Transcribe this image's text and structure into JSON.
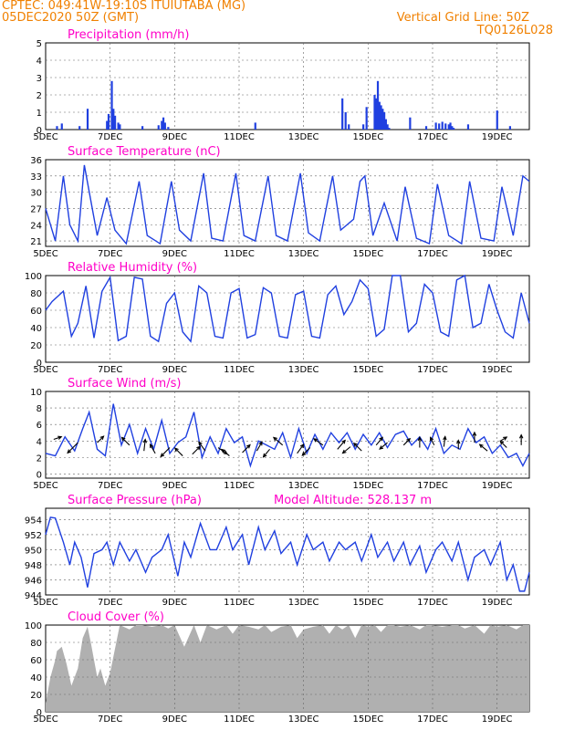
{
  "header": {
    "line1_left": "CPTEC:   049:41W-19:10S   ITUIUTABA (MG)",
    "line2_left": "05DEC2020 50Z (GMT)",
    "line1_right": "Vertical Grid Line: 50Z",
    "line2_right": "TQ0126L028"
  },
  "colors": {
    "header": "#f08000",
    "title": "#ff00c8",
    "series": "#2040e0",
    "cloud": "#b0b0b0",
    "wind_arrow": "#000000"
  },
  "x_dates": [
    "5DEC",
    "7DEC",
    "9DEC",
    "11DEC",
    "13DEC",
    "15DEC",
    "17DEC",
    "19DEC"
  ],
  "chart_data": [
    {
      "id": "precipitation",
      "type": "bar",
      "title": "Precipitation (mm/h)",
      "xlim": [
        0,
        15
      ],
      "ylim": [
        0,
        5
      ],
      "yticks": [
        "0",
        "1",
        "2",
        "3",
        "4",
        "5"
      ],
      "grid": true,
      "x": [
        0.35,
        0.5,
        1.05,
        1.3,
        1.9,
        1.95,
        2.05,
        2.1,
        2.15,
        2.25,
        2.3,
        3.0,
        3.5,
        3.6,
        3.65,
        3.7,
        3.8,
        6.5,
        9.2,
        9.3,
        9.4,
        9.85,
        9.95,
        10.2,
        10.25,
        10.3,
        10.35,
        10.4,
        10.45,
        10.5,
        10.55,
        10.6,
        10.65,
        11.3,
        11.8,
        12.1,
        12.2,
        12.3,
        12.4,
        12.5,
        12.55,
        12.6,
        12.65,
        13.1,
        14.0,
        14.4
      ],
      "values": [
        0.2,
        0.35,
        0.2,
        1.2,
        0.5,
        0.9,
        2.8,
        1.2,
        0.8,
        0.4,
        0.3,
        0.2,
        0.25,
        0.5,
        0.7,
        0.4,
        0.15,
        0.4,
        1.8,
        1.0,
        0.3,
        0.3,
        1.3,
        2.0,
        1.8,
        2.8,
        1.6,
        1.4,
        1.2,
        1.0,
        0.6,
        0.3,
        0.1,
        0.7,
        0.2,
        0.4,
        0.35,
        0.45,
        0.35,
        0.3,
        0.4,
        0.2,
        0.1,
        0.3,
        1.1,
        0.2
      ]
    },
    {
      "id": "temperature",
      "type": "line",
      "title": "Surface Temperature (nC)",
      "xlim": [
        0,
        15
      ],
      "ylim": [
        20,
        36
      ],
      "yticks": [
        "21",
        "24",
        "27",
        "30",
        "33",
        "36"
      ],
      "grid": true,
      "x": [
        0,
        0.3,
        0.55,
        0.75,
        1.0,
        1.2,
        1.6,
        1.9,
        2.15,
        2.5,
        2.9,
        3.15,
        3.55,
        3.9,
        4.15,
        4.5,
        4.9,
        5.15,
        5.5,
        5.9,
        6.15,
        6.5,
        6.9,
        7.15,
        7.5,
        7.9,
        8.15,
        8.5,
        8.9,
        9.15,
        9.55,
        9.75,
        9.9,
        10.15,
        10.5,
        10.9,
        11.15,
        11.5,
        11.9,
        12.15,
        12.5,
        12.9,
        13.15,
        13.5,
        13.9,
        14.15,
        14.5,
        14.8,
        15.0
      ],
      "values": [
        27,
        21,
        33,
        24,
        21,
        35,
        22,
        29,
        23,
        20.5,
        32,
        22,
        20.5,
        32,
        23,
        21,
        33.5,
        21.5,
        21,
        33.5,
        22,
        21,
        33,
        22,
        21,
        33.5,
        22.5,
        21,
        33,
        23,
        25,
        32,
        33,
        22,
        28,
        21,
        31,
        21.5,
        20.5,
        31.5,
        22,
        20.5,
        32,
        21.5,
        21,
        31,
        22,
        33,
        32
      ]
    },
    {
      "id": "humidity",
      "type": "line",
      "title": "Relative Humidity (%)",
      "xlim": [
        0,
        15
      ],
      "ylim": [
        0,
        100
      ],
      "yticks": [
        "0",
        "20",
        "40",
        "60",
        "80",
        "100"
      ],
      "grid": true,
      "x": [
        0,
        0.2,
        0.55,
        0.8,
        1.0,
        1.25,
        1.5,
        1.75,
        2.0,
        2.25,
        2.5,
        2.75,
        3.0,
        3.25,
        3.5,
        3.75,
        4.0,
        4.25,
        4.5,
        4.75,
        5.0,
        5.25,
        5.5,
        5.75,
        6.0,
        6.25,
        6.5,
        6.75,
        7.0,
        7.25,
        7.5,
        7.75,
        8.0,
        8.25,
        8.5,
        8.75,
        9.0,
        9.25,
        9.5,
        9.75,
        10.0,
        10.25,
        10.5,
        10.75,
        11.0,
        11.25,
        11.5,
        11.75,
        12.0,
        12.25,
        12.5,
        12.75,
        13.0,
        13.25,
        13.5,
        13.75,
        14.0,
        14.25,
        14.5,
        14.75,
        15.0
      ],
      "values": [
        60,
        70,
        82,
        30,
        45,
        88,
        28,
        82,
        98,
        25,
        30,
        98,
        96,
        30,
        24,
        68,
        80,
        35,
        24,
        88,
        80,
        30,
        28,
        80,
        85,
        28,
        32,
        86,
        80,
        30,
        28,
        78,
        82,
        30,
        28,
        78,
        88,
        55,
        70,
        95,
        85,
        30,
        38,
        100,
        100,
        35,
        45,
        90,
        80,
        35,
        30,
        95,
        100,
        40,
        45,
        90,
        60,
        35,
        28,
        80,
        45
      ]
    },
    {
      "id": "wind",
      "type": "line",
      "title": "Surface Wind (m/s)",
      "xlim": [
        0,
        15
      ],
      "ylim": [
        -0.5,
        10
      ],
      "yticks": [
        "0",
        "2",
        "4",
        "6",
        "8",
        "10"
      ],
      "grid": true,
      "x": [
        0,
        0.3,
        0.6,
        0.9,
        1.15,
        1.35,
        1.6,
        1.85,
        2.1,
        2.35,
        2.6,
        2.85,
        3.1,
        3.35,
        3.6,
        3.85,
        4.1,
        4.35,
        4.6,
        4.85,
        5.1,
        5.35,
        5.6,
        5.85,
        6.1,
        6.35,
        6.6,
        6.85,
        7.1,
        7.35,
        7.6,
        7.85,
        8.1,
        8.35,
        8.6,
        8.85,
        9.1,
        9.35,
        9.6,
        9.85,
        10.1,
        10.35,
        10.6,
        10.85,
        11.1,
        11.35,
        11.6,
        11.85,
        12.1,
        12.35,
        12.6,
        12.85,
        13.1,
        13.35,
        13.6,
        13.85,
        14.1,
        14.35,
        14.6,
        14.8,
        15.0
      ],
      "values": [
        2.5,
        2.2,
        4.5,
        2.8,
        5.5,
        7.5,
        3.0,
        2.2,
        8.5,
        3.5,
        6.0,
        2.5,
        5.5,
        3.0,
        6.5,
        2.5,
        3.8,
        4.5,
        7.5,
        2.0,
        4.5,
        2.5,
        5.5,
        3.8,
        4.5,
        1.0,
        4.0,
        3.5,
        3.0,
        5.0,
        2.0,
        5.5,
        2.5,
        4.8,
        3.0,
        5.0,
        3.8,
        5.0,
        3.0,
        4.8,
        3.5,
        5.0,
        3.2,
        4.8,
        5.2,
        3.5,
        4.5,
        3.0,
        5.5,
        2.5,
        3.5,
        3.0,
        5.5,
        3.8,
        4.5,
        2.5,
        3.5,
        2.0,
        2.5,
        1.0,
        2.5
      ]
    },
    {
      "id": "pressure",
      "type": "line",
      "title": "Surface Pressure (hPa)",
      "annotation": "Model Altitude: 528.137 m",
      "xlim": [
        0,
        15
      ],
      "ylim": [
        944,
        955.5
      ],
      "yticks": [
        "944",
        "946",
        "948",
        "950",
        "952",
        "954"
      ],
      "grid": true,
      "x": [
        0,
        0.15,
        0.3,
        0.55,
        0.75,
        0.9,
        1.1,
        1.3,
        1.5,
        1.75,
        1.9,
        2.1,
        2.3,
        2.6,
        2.8,
        3.1,
        3.3,
        3.6,
        3.8,
        4.1,
        4.3,
        4.5,
        4.8,
        5.1,
        5.3,
        5.6,
        5.8,
        6.1,
        6.3,
        6.6,
        6.8,
        7.1,
        7.3,
        7.6,
        7.8,
        8.1,
        8.3,
        8.6,
        8.8,
        9.1,
        9.3,
        9.6,
        9.8,
        10.1,
        10.3,
        10.6,
        10.8,
        11.1,
        11.3,
        11.6,
        11.8,
        12.1,
        12.3,
        12.6,
        12.8,
        13.1,
        13.3,
        13.6,
        13.8,
        14.1,
        14.3,
        14.5,
        14.7,
        14.85,
        15.0
      ],
      "values": [
        952,
        954.3,
        954.2,
        951,
        948,
        951,
        949,
        945,
        949.5,
        950,
        951,
        948,
        951,
        948.5,
        950,
        947,
        949,
        950,
        952,
        946.5,
        951,
        949,
        953.5,
        950,
        950,
        953,
        950,
        952,
        948,
        953,
        950,
        952.5,
        949.5,
        951,
        948,
        952,
        950,
        951,
        948.5,
        951,
        950,
        951,
        948.5,
        952,
        949,
        951,
        948.5,
        951,
        948,
        950.5,
        947,
        950,
        951,
        948.5,
        951,
        946,
        949,
        950,
        948,
        951,
        946,
        948,
        944.5,
        944.5,
        947
      ]
    },
    {
      "id": "cloud",
      "type": "area",
      "title": "Cloud Cover (%)",
      "xlim": [
        0,
        15
      ],
      "ylim": [
        0,
        100
      ],
      "yticks": [
        "0",
        "20",
        "40",
        "60",
        "80",
        "100"
      ],
      "grid": true,
      "x": [
        0,
        0.15,
        0.3,
        0.35,
        0.5,
        0.65,
        0.8,
        1.0,
        1.15,
        1.3,
        1.4,
        1.5,
        1.6,
        1.7,
        1.85,
        2.0,
        2.3,
        2.6,
        2.8,
        3.0,
        3.3,
        3.6,
        3.8,
        4.0,
        4.3,
        4.6,
        4.8,
        5.0,
        5.3,
        5.6,
        5.8,
        6.0,
        6.3,
        6.6,
        6.8,
        7.0,
        7.3,
        7.6,
        7.8,
        8.0,
        8.3,
        8.6,
        8.8,
        9.0,
        9.2,
        9.4,
        9.6,
        9.8,
        10.0,
        10.2,
        10.4,
        10.6,
        10.8,
        11.0,
        11.3,
        11.6,
        11.8,
        12.0,
        12.3,
        12.6,
        12.8,
        13.0,
        13.3,
        13.6,
        13.8,
        14.0,
        14.3,
        14.6,
        14.8,
        15.0
      ],
      "values": [
        10,
        40,
        60,
        70,
        75,
        55,
        30,
        50,
        85,
        98,
        80,
        60,
        40,
        50,
        30,
        45,
        100,
        95,
        100,
        100,
        98,
        100,
        96,
        100,
        75,
        100,
        80,
        100,
        95,
        100,
        90,
        100,
        98,
        95,
        100,
        92,
        98,
        100,
        85,
        95,
        98,
        100,
        90,
        100,
        95,
        100,
        85,
        100,
        98,
        100,
        92,
        100,
        100,
        98,
        100,
        95,
        100,
        100,
        98,
        100,
        100,
        96,
        100,
        90,
        100,
        98,
        100,
        95,
        100,
        100
      ]
    }
  ],
  "wind_arrows": [
    {
      "x": 0.25,
      "y": 4.2,
      "u": 0.6,
      "v": 0.2
    },
    {
      "x": 1.0,
      "y": 3.8,
      "u": -0.8,
      "v": -0.8
    },
    {
      "x": 1.6,
      "y": 3.8,
      "u": 0.5,
      "v": 0.5
    },
    {
      "x": 2.6,
      "y": 3.5,
      "u": -0.6,
      "v": 0.6
    },
    {
      "x": 3.05,
      "y": 2.8,
      "u": 0.1,
      "v": 0.9
    },
    {
      "x": 3.4,
      "y": 2.5,
      "u": -0.4,
      "v": 0.7
    },
    {
      "x": 3.85,
      "y": 3.2,
      "u": -0.7,
      "v": -0.7
    },
    {
      "x": 4.25,
      "y": 2.2,
      "u": -0.6,
      "v": 0.6
    },
    {
      "x": 4.55,
      "y": 2.4,
      "u": 0.6,
      "v": 0.6
    },
    {
      "x": 4.95,
      "y": 2.8,
      "u": -0.5,
      "v": 0.7
    },
    {
      "x": 5.35,
      "y": 3.2,
      "u": 0.7,
      "v": -0.5
    },
    {
      "x": 5.7,
      "y": 2.2,
      "u": -0.6,
      "v": 0.5
    },
    {
      "x": 6.1,
      "y": 2.6,
      "u": 0.6,
      "v": 0.6
    },
    {
      "x": 6.55,
      "y": 2.8,
      "u": 0.4,
      "v": 0.7
    },
    {
      "x": 6.95,
      "y": 3.0,
      "u": -0.5,
      "v": -0.6
    },
    {
      "x": 7.35,
      "y": 3.5,
      "u": -0.7,
      "v": 0.6
    },
    {
      "x": 7.8,
      "y": 2.5,
      "u": 0.5,
      "v": 0.7
    },
    {
      "x": 8.2,
      "y": 3.2,
      "u": -0.6,
      "v": -0.6
    },
    {
      "x": 8.6,
      "y": 3.5,
      "u": -0.7,
      "v": 0.5
    },
    {
      "x": 9.05,
      "y": 3.0,
      "u": 0.6,
      "v": 0.7
    },
    {
      "x": 9.45,
      "y": 3.3,
      "u": -0.6,
      "v": -0.5
    },
    {
      "x": 9.8,
      "y": 2.8,
      "u": -0.6,
      "v": 0.6
    },
    {
      "x": 10.25,
      "y": 3.5,
      "u": 0.5,
      "v": 0.6
    },
    {
      "x": 10.6,
      "y": 3.8,
      "u": -0.6,
      "v": -0.5
    },
    {
      "x": 11.1,
      "y": 3.5,
      "u": 0.5,
      "v": 0.5
    },
    {
      "x": 11.6,
      "y": 3.2,
      "u": 0.0,
      "v": 0.8
    },
    {
      "x": 12.05,
      "y": 3.5,
      "u": -0.3,
      "v": 0.6
    },
    {
      "x": 12.35,
      "y": 3.3,
      "u": 0.1,
      "v": 0.8
    },
    {
      "x": 12.8,
      "y": 3.0,
      "u": 0.0,
      "v": 0.7
    },
    {
      "x": 13.3,
      "y": 3.8,
      "u": 0.0,
      "v": 0.8
    },
    {
      "x": 13.7,
      "y": 2.8,
      "u": -0.6,
      "v": 0.5
    },
    {
      "x": 14.1,
      "y": 4.0,
      "u": 0.5,
      "v": 0.3
    },
    {
      "x": 14.3,
      "y": 3.2,
      "u": -0.5,
      "v": 0.5
    },
    {
      "x": 14.75,
      "y": 3.5,
      "u": 0.0,
      "v": 0.8
    }
  ]
}
